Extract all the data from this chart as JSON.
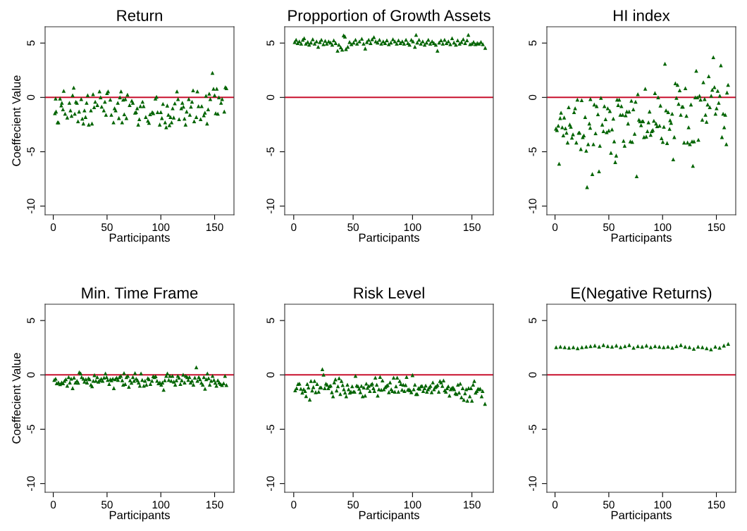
{
  "chart_data": [
    {
      "type": "scatter",
      "title": "Return",
      "xlabel": "Participants",
      "ylabel": "Coeffecient Value",
      "color": "#006400",
      "marker": "triangle",
      "xlim": [
        -7.6,
        168
      ],
      "ylim": [
        -10.8,
        6.5
      ],
      "xticks": [
        0,
        50,
        100,
        150
      ],
      "yticks": [
        5,
        0,
        -5,
        -10
      ],
      "ref_lines": [
        {
          "axis": "y",
          "value": 0,
          "color": "#c8102e"
        }
      ],
      "x": [
        1.5,
        2.6,
        2.2,
        4,
        4.8,
        6.3,
        7.4,
        8,
        9,
        9.7,
        11,
        13,
        15,
        16,
        17,
        18,
        19,
        20,
        21,
        22,
        23,
        24,
        26,
        27,
        28,
        29,
        30,
        31,
        32,
        33,
        35,
        36,
        37,
        38,
        39,
        41,
        43,
        44,
        45,
        47,
        48,
        49,
        50,
        51,
        53,
        54,
        56,
        57,
        58,
        60,
        61,
        62,
        63,
        64,
        65,
        66,
        67,
        68,
        69,
        71,
        73,
        74,
        76,
        77,
        78,
        79,
        80,
        81,
        83,
        84,
        86,
        88,
        89,
        90,
        92,
        93,
        95,
        96,
        97,
        99,
        100,
        101,
        102,
        104,
        105,
        106,
        107,
        108,
        109,
        110,
        111,
        112,
        113,
        115,
        116,
        117,
        119,
        120,
        121,
        122,
        123,
        124,
        126,
        127,
        128,
        129,
        130,
        131,
        133,
        134,
        135,
        137,
        138,
        140,
        141,
        142,
        143,
        144,
        145,
        146,
        148,
        149,
        150,
        151,
        152,
        153,
        154,
        156,
        157,
        159,
        160,
        161
      ],
      "values": [
        -1.45,
        -1.3,
        -0.1,
        -2.3,
        -2.3,
        -0.1,
        -0.74,
        -0.5,
        -1.1,
        0.6,
        -1.5,
        -1.85,
        -0.5,
        -1.2,
        -1.7,
        0.2,
        0.9,
        -1.5,
        -0.4,
        -0.5,
        -2.2,
        -1.3,
        -0.15,
        -1.95,
        -2.4,
        -1.2,
        -1.8,
        -0.5,
        0.2,
        -2.5,
        -1.2,
        -2.4,
        0.3,
        -0.9,
        -0.4,
        -0.7,
        0.55,
        0,
        -0.85,
        -1.2,
        -0.4,
        -1.6,
        0.4,
        0.55,
        -0.2,
        -1.6,
        -2.3,
        -1.0,
        -1.2,
        -0.5,
        -1.9,
        0,
        0.55,
        -2.3,
        -0.2,
        -1.55,
        -0.15,
        -1.9,
        0.25,
        -0.7,
        -0.3,
        -0.5,
        -1.4,
        -1.35,
        -1.0,
        -2.5,
        -2.0,
        -0.8,
        -0.4,
        -0.8,
        -1.8,
        -2.15,
        -2.35,
        -1.55,
        -1.35,
        -1.45,
        -0.1,
        0.05,
        -1.35,
        -2.5,
        -1.35,
        -1.9,
        -0.6,
        -2.3,
        -2.75,
        -0.75,
        -1.6,
        -2.55,
        -1.8,
        -2.3,
        -1.0,
        -1.85,
        -0.55,
        0.55,
        -0.15,
        -2.0,
        -1.0,
        -0.5,
        -0.85,
        -1.95,
        -2.5,
        -1.3,
        -0.15,
        -1.6,
        -0.85,
        -0.4,
        0.65,
        -2.2,
        -1.8,
        0.55,
        -0.8,
        -2.0,
        -0.8,
        -1.65,
        -1.4,
        0.15,
        -2.4,
        -1.1,
        0.35,
        -0.15,
        2.25,
        0.8,
        0.2,
        -1.45,
        0.8,
        -1.5,
        0,
        -0.5,
        -0.15,
        -1.3,
        0.95,
        0.85
      ]
    },
    {
      "type": "scatter",
      "title": "Propportion of Growth Assets",
      "xlabel": "Participants",
      "color": "#006400",
      "marker": "triangle",
      "xlim": [
        -7.6,
        168
      ],
      "ylim": [
        -10.8,
        6.5
      ],
      "xticks": [
        0,
        50,
        100,
        150
      ],
      "yticks": [
        5,
        0,
        -5,
        -10
      ],
      "ref_lines": [
        {
          "axis": "y",
          "value": 0,
          "color": "#c8102e"
        }
      ],
      "x": [
        0.8,
        2,
        3.3,
        4.7,
        6.3,
        7.6,
        8.8,
        10.2,
        11.8,
        13,
        14.5,
        16,
        17.6,
        19.2,
        20.6,
        22,
        23.3,
        25,
        26.5,
        27.8,
        29.4,
        31,
        32.4,
        33.7,
        35.3,
        36.9,
        38,
        39.6,
        40.8,
        42,
        43.1,
        44,
        45.5,
        47,
        48.6,
        50.4,
        52,
        53.3,
        55.3,
        57.3,
        58.8,
        60.2,
        61.6,
        63.1,
        64.7,
        66,
        67.5,
        69,
        70.6,
        72.2,
        73.7,
        75.3,
        76.9,
        78.4,
        80,
        81.8,
        83.5,
        85.1,
        86.7,
        88.2,
        89.8,
        91.4,
        92.9,
        94.5,
        96.1,
        97.5,
        99,
        100.4,
        102,
        103,
        104,
        105.5,
        107,
        108.6,
        110.2,
        111.8,
        113.3,
        114.9,
        116.5,
        118,
        119.6,
        121,
        122.4,
        124,
        125.5,
        127,
        128.6,
        130.2,
        131.8,
        133.3,
        134.9,
        136.5,
        138,
        139.6,
        141.2,
        142.7,
        144.3,
        145.9,
        147,
        148.4,
        150,
        151.4,
        153,
        154.5,
        156,
        157.6,
        159.2,
        161.2
      ],
      "values": [
        5.1,
        5.3,
        5.0,
        5.15,
        4.95,
        5.3,
        5.45,
        4.95,
        5.1,
        4.85,
        5.05,
        5.35,
        4.95,
        5.15,
        4.65,
        5.1,
        5.3,
        4.9,
        5.2,
        4.95,
        5.15,
        5.05,
        4.85,
        5.25,
        5.0,
        4.3,
        4.85,
        4.6,
        4.4,
        5.7,
        5.6,
        4.45,
        4.65,
        5.1,
        4.9,
        5.05,
        5.3,
        4.95,
        5.15,
        5.4,
        4.95,
        4.5,
        5.1,
        5.3,
        5.0,
        5.35,
        5.55,
        5.15,
        5.05,
        5.3,
        4.95,
        5.15,
        5.0,
        5.25,
        4.9,
        5.05,
        5.35,
        5.15,
        4.95,
        5.25,
        5.0,
        5.15,
        4.95,
        5.3,
        5.0,
        4.85,
        5.3,
        5.15,
        4.65,
        5.75,
        5.05,
        5.3,
        4.95,
        5.15,
        4.85,
        5.05,
        5.3,
        4.95,
        5.15,
        5.0,
        4.85,
        4.3,
        5.05,
        5.25,
        4.95,
        5.3,
        5.0,
        5.15,
        4.9,
        5.45,
        5.05,
        4.85,
        5.25,
        4.95,
        5.1,
        5.35,
        5.0,
        5.25,
        5.75,
        4.9,
        4.95,
        5.1,
        4.9,
        5.0,
        4.95,
        5.1,
        4.9,
        4.55
      ]
    },
    {
      "type": "scatter",
      "title": "HI index",
      "xlabel": "Participants",
      "color": "#006400",
      "marker": "triangle",
      "xlim": [
        -7.6,
        168
      ],
      "ylim": [
        -10.8,
        6.5
      ],
      "xticks": [
        0,
        50,
        100,
        150
      ],
      "yticks": [
        5,
        0,
        -5,
        -10
      ],
      "ref_lines": [
        {
          "axis": "y",
          "value": 0,
          "color": "#c8102e"
        }
      ],
      "x": [
        0.8,
        1.8,
        3,
        3.8,
        4.8,
        5.6,
        6.7,
        7.7,
        8.5,
        9.7,
        10.7,
        11.7,
        12.7,
        13.7,
        14.7,
        15.7,
        16.7,
        17.7,
        18.7,
        19.8,
        20.8,
        22,
        22.8,
        24,
        24.8,
        25.8,
        26.8,
        28,
        29,
        29.8,
        30.8,
        31.9,
        32.7,
        32.9,
        34.7,
        35.7,
        36.5,
        37.7,
        38.7,
        39.9,
        40.9,
        41.7,
        42.7,
        43.9,
        45,
        45.9,
        47,
        48,
        49,
        50,
        51,
        52,
        53,
        54.2,
        55,
        56,
        56.9,
        57.7,
        58.7,
        59.7,
        60.7,
        61.7,
        62.9,
        63.7,
        64.7,
        65.7,
        66.7,
        67.9,
        68.9,
        70,
        71,
        71.8,
        72.8,
        74,
        74.9,
        75.9,
        77,
        78,
        79,
        80,
        81,
        81.9,
        82.7,
        83.9,
        84.8,
        85.9,
        86.9,
        87.9,
        88.9,
        89.9,
        90.9,
        91.9,
        92.9,
        93.9,
        94.9,
        95.9,
        97.2,
        98,
        99,
        100.2,
        101.2,
        102.2,
        103.2,
        104.2,
        105.2,
        106.5,
        107,
        107.9,
        108.9,
        109.9,
        110.9,
        111.9,
        112.9,
        113.9,
        114.9,
        115.9,
        116.9,
        118.1,
        118.9,
        120,
        121.2,
        122.2,
        123.2,
        124.2,
        125.4,
        126.4,
        127.4,
        128.2,
        129.2,
        130.4,
        131.3,
        132.3,
        133.3,
        134.3,
        135.3,
        136.9,
        137.9,
        139.1,
        139.9,
        140.9,
        141.9,
        142.9,
        143.9,
        145.2,
        146.2,
        147.2,
        148.2,
        149.2,
        150.2,
        151.2,
        152.2,
        153.2,
        154.2,
        155.2,
        156.3,
        157.3,
        158.3,
        159.3,
        159.9,
        160.9
      ],
      "values": [
        -2.87,
        -3.0,
        -2.6,
        -6.1,
        -1.9,
        -1.4,
        -2.75,
        -3.5,
        -1.85,
        -2.85,
        -3.25,
        -4.15,
        -0.9,
        -2.5,
        -2.7,
        -3.7,
        -3.4,
        -1.35,
        -1.0,
        -4.15,
        -0.2,
        -3.25,
        -3.25,
        -4.75,
        -0.25,
        -3.65,
        -3.5,
        -1.8,
        -4.9,
        -8.25,
        -4.3,
        -2.4,
        -2.8,
        -0.15,
        -7.05,
        -4.3,
        -0.65,
        -3.3,
        -0.8,
        -1.55,
        -6.8,
        -4.45,
        -0.05,
        -2.5,
        -3.1,
        -0.8,
        -2.0,
        -3.2,
        -1.0,
        -3.05,
        -1.25,
        -5.1,
        -2.95,
        -1.95,
        -4.05,
        -5.95,
        -5.35,
        -0.2,
        -0.7,
        -0.2,
        -1.6,
        -0.8,
        -1.6,
        -4.0,
        -4.45,
        -1.65,
        -1.3,
        -2.4,
        -1.3,
        -4.05,
        -0.3,
        -4.1,
        -1.1,
        -3.35,
        -0.4,
        -7.25,
        0.3,
        -2.05,
        -2.2,
        -2.55,
        -2.2,
        -2.2,
        -3.65,
        0.8,
        -3.6,
        -3.1,
        -2.3,
        -1.3,
        -3.45,
        -3.1,
        -3.0,
        -2.15,
        0.4,
        -2.4,
        -2.65,
        0.0,
        -2.6,
        -0.75,
        -3.75,
        -4.1,
        -2.7,
        3.1,
        -1.2,
        -4.2,
        -1.35,
        -2.9,
        -2.1,
        -2.35,
        -1.5,
        -5.7,
        -3.65,
        1.3,
        -0.05,
        1.15,
        -0.6,
        0.65,
        -1.6,
        -0.85,
        -0.85,
        -4.15,
        0.85,
        -1.7,
        -4.15,
        -2.75,
        -4.3,
        -0.65,
        -4.05,
        -6.3,
        -4.05,
        0.0,
        2.45,
        0.0,
        -3.9,
        0.15,
        -0.2,
        -2.05,
        1.4,
        -0.15,
        -1.6,
        -2.25,
        -0.65,
        1.95,
        -0.9,
        0.15,
        0.7,
        3.7,
        0.95,
        -1.5,
        -1.0,
        0.6,
        -0.5,
        0.15,
        2.95,
        -3.65,
        -1.5,
        -2.75,
        -1.6,
        -4.3,
        0.45,
        1.15
      ]
    },
    {
      "type": "scatter",
      "title": "Min. Time Frame",
      "xlabel": "Participants",
      "ylabel": "Coeffecient Value",
      "color": "#006400",
      "marker": "triangle",
      "xlim": [
        -7.6,
        168
      ],
      "ylim": [
        -10.8,
        6.5
      ],
      "xticks": [
        0,
        50,
        100,
        150
      ],
      "yticks": [
        5,
        0,
        -5,
        -10
      ],
      "ref_lines": [
        {
          "axis": "y",
          "value": 0,
          "color": "#c8102e"
        }
      ],
      "x": [
        0.9,
        2.2,
        3.2,
        4.8,
        6.3,
        7.8,
        9.1,
        10.4,
        11.7,
        13,
        14.3,
        15.4,
        16.7,
        18,
        19.3,
        20.6,
        22.1,
        23.2,
        24.2,
        25.5,
        26.4,
        28,
        29,
        30.3,
        31.4,
        32.7,
        33.8,
        35,
        36.1,
        37.2,
        38.3,
        39.6,
        40.9,
        42,
        43.3,
        44.6,
        45.9,
        47.2,
        48.5,
        49.6,
        50.6,
        52,
        53,
        54.1,
        55.4,
        56.3,
        57.6,
        58.9,
        60.2,
        61.5,
        62.8,
        64.1,
        65,
        65.8,
        66.9,
        68,
        69.3,
        70.3,
        71.4,
        72.7,
        74,
        75.1,
        76,
        77.1,
        78.4,
        79.4,
        80.5,
        81.6,
        82.7,
        84.2,
        85.3,
        86.6,
        87.9,
        89,
        90.3,
        91.8,
        92.9,
        94,
        95.2,
        96.5,
        97.8,
        99.1,
        100.4,
        101.5,
        102.6,
        103.7,
        105,
        106.1,
        107.4,
        108.4,
        109.7,
        110.8,
        112.1,
        113.4,
        114.5,
        115.8,
        116.9,
        118.2,
        119.5,
        120.8,
        122.1,
        123.2,
        124.5,
        125.5,
        126.6,
        127.7,
        129,
        130.3,
        131.6,
        133,
        134,
        135.3,
        136.4,
        137.7,
        139,
        140,
        141.1,
        142.2,
        143.3,
        144.4,
        145.5,
        146.8,
        148.1,
        149.4,
        150.6,
        151.7,
        153,
        154.3,
        155.6,
        156.9,
        158.4,
        159.7,
        161
      ],
      "values": [
        -0.47,
        -0.35,
        -0.77,
        -0.7,
        -0.85,
        -0.7,
        -0.77,
        -0.55,
        -0.4,
        -1.0,
        -0.2,
        -0.7,
        -0.35,
        -1.22,
        -0.26,
        -0.7,
        -0.55,
        -0.73,
        0.24,
        0.13,
        -0.2,
        -0.35,
        -0.62,
        -0.4,
        -0.7,
        -0.3,
        -0.4,
        -0.9,
        -1.05,
        -0.55,
        -0.02,
        -0.55,
        -0.2,
        -0.62,
        -0.5,
        -0.35,
        -0.55,
        -0.26,
        0.13,
        -0.2,
        -0.47,
        -0.84,
        -0.4,
        -0.5,
        -0.35,
        -1.22,
        -0.4,
        -0.26,
        -0.47,
        -0.2,
        -0.09,
        -0.5,
        -0.9,
        0.17,
        -0.84,
        -0.2,
        -0.09,
        -1.1,
        -0.5,
        -0.73,
        -0.2,
        -0.55,
        0.17,
        -0.35,
        -0.5,
        -0.7,
        -1.0,
        0.13,
        -0.47,
        -1.0,
        -0.55,
        -0.9,
        -0.3,
        -0.4,
        -0.84,
        -0.55,
        -0.13,
        -0.2,
        -0.13,
        -0.55,
        -0.77,
        -0.7,
        -0.9,
        -0.7,
        -1.37,
        -0.5,
        -0.09,
        0.13,
        -0.47,
        -0.09,
        -0.55,
        -0.09,
        -0.62,
        -0.9,
        -0.5,
        -0.09,
        -0.26,
        -0.84,
        -0.5,
        0.02,
        -0.7,
        -0.09,
        -0.2,
        -0.47,
        -0.2,
        -0.7,
        -0.55,
        -0.9,
        -0.26,
        0.7,
        -0.55,
        -0.2,
        -0.4,
        -0.73,
        -0.9,
        -0.2,
        -1.27,
        -0.4,
        0.13,
        -0.3,
        -0.9,
        -0.55,
        -0.09,
        -0.47,
        -0.73,
        -1.0,
        -0.5,
        -0.7,
        -0.84,
        -0.94,
        -0.77,
        -0.09,
        -0.94
      ]
    },
    {
      "type": "scatter",
      "title": "Risk Level",
      "xlabel": "Participants",
      "color": "#006400",
      "marker": "triangle",
      "xlim": [
        -7.6,
        168
      ],
      "ylim": [
        -10.8,
        6.5
      ],
      "xticks": [
        0,
        50,
        100,
        150
      ],
      "yticks": [
        5,
        0,
        -5,
        -10
      ],
      "ref_lines": [
        {
          "axis": "y",
          "value": 0,
          "color": "#c8102e"
        }
      ],
      "x": [
        1.2,
        2.4,
        3.6,
        4.8,
        6,
        7.2,
        8.4,
        9.6,
        10.4,
        11.4,
        12.4,
        13.5,
        14.5,
        15.5,
        16.5,
        17.5,
        18.5,
        19.7,
        21,
        22.1,
        23.1,
        24.1,
        25.1,
        26.1,
        27.1,
        28.1,
        29.1,
        30.1,
        31.1,
        32.1,
        33.1,
        34.1,
        35.1,
        36.1,
        37.2,
        38.2,
        39.2,
        40.2,
        41.2,
        42.2,
        43.2,
        44.2,
        45.2,
        46.2,
        47.2,
        48.2,
        49.2,
        50.2,
        51.2,
        52,
        53,
        54.1,
        55.1,
        56.1,
        57,
        58,
        59,
        60.1,
        61.1,
        62.1,
        63.1,
        64.1,
        65.1,
        66.1,
        67.1,
        67.9,
        68.7,
        69.9,
        70.7,
        71.7,
        72.7,
        73.7,
        74.7,
        75.9,
        77.1,
        78.1,
        79.1,
        80.1,
        81.1,
        82.1,
        83.1,
        84.1,
        85.1,
        86.1,
        87.1,
        88.1,
        89.2,
        90.2,
        91.2,
        92.2,
        93.2,
        94.2,
        95,
        96,
        97,
        98,
        99,
        100,
        101,
        102,
        103,
        104,
        105,
        106,
        107,
        108,
        109,
        110.1,
        111.1,
        112.1,
        113.1,
        114.1,
        115.1,
        116.1,
        117.1,
        118.1,
        119.1,
        120.1,
        121.1,
        122.1,
        123.1,
        124.1,
        125.1,
        126.1,
        127.1,
        128.1,
        129.1,
        130.1,
        131.1,
        132.1,
        133.1,
        134.1,
        135.1,
        136.1,
        137.1,
        138.2,
        139.2,
        140.2,
        141.2,
        142.2,
        143.2,
        144.2,
        145.2,
        146.2,
        147.2,
        148.2,
        149.2,
        150,
        151,
        152,
        153.1,
        154.1,
        155.1,
        156.1,
        157,
        158.2,
        159,
        161
      ],
      "values": [
        -1.42,
        -1.22,
        -0.84,
        -0.8,
        -1.27,
        -1.63,
        -1.33,
        -1.48,
        -1.95,
        -0.84,
        -1.16,
        -2.27,
        -0.56,
        -1.44,
        -1.12,
        -0.56,
        -1.59,
        -0.84,
        -1.55,
        -1.16,
        -1.16,
        0.52,
        0.02,
        -1.22,
        -0.8,
        -0.9,
        -1.22,
        -1.05,
        -0.99,
        -1.59,
        -1.97,
        -0.69,
        -0.41,
        -1.44,
        -1.05,
        -0.3,
        -1.76,
        -0.56,
        -0.94,
        -1.33,
        -1.63,
        -1.97,
        -0.9,
        -1.33,
        -1.63,
        -1.55,
        -1.05,
        -1.55,
        -1.55,
        -0.09,
        -0.99,
        -1.05,
        -1.27,
        -1.59,
        -1.01,
        -1.97,
        -1.16,
        -1.91,
        -0.8,
        -1.2,
        -1.01,
        -1.48,
        -0.9,
        -0.8,
        -1.22,
        -1.48,
        -0.26,
        -0.9,
        -1.91,
        -1.33,
        -0.19,
        -1.37,
        -0.52,
        -1.33,
        -1.12,
        -1.01,
        -0.94,
        -1.59,
        -0.69,
        -1.33,
        -1.48,
        -0.26,
        -1.55,
        -1.05,
        -0.26,
        -1.55,
        -0.56,
        -0.84,
        -1.37,
        -0.9,
        -1.48,
        -0.94,
        -0.19,
        -1.37,
        -1.33,
        -1.42,
        -1.59,
        -0.02,
        -1.33,
        -0.9,
        -1.76,
        -1.76,
        -1.22,
        -1.27,
        -1.05,
        -1.01,
        -1.48,
        -1.22,
        -0.99,
        -1.55,
        -1.33,
        -1.16,
        -1.01,
        -1.59,
        -0.69,
        -1.33,
        -1.12,
        -1.05,
        -0.94,
        -1.55,
        -0.56,
        -0.69,
        -1.01,
        -0.52,
        -1.42,
        -1.55,
        -1.22,
        -1.05,
        -1.91,
        -1.33,
        -1.22,
        -1.16,
        -1.33,
        -1.7,
        -1.76,
        -0.9,
        -1.63,
        -0.8,
        -2.06,
        -1.22,
        -2.3,
        -1.7,
        -1.33,
        -2.38,
        -1.22,
        -1.97,
        -1.22,
        -2.38,
        -0.9,
        -0.56,
        -1.63,
        -1.48,
        -1.27,
        -1.33,
        -1.27,
        -1.97,
        -1.48,
        -2.66
      ]
    },
    {
      "type": "scatter",
      "title": "E(Negative Returns)",
      "xlabel": "Participants",
      "color": "#006400",
      "marker": "triangle",
      "xlim": [
        -7.6,
        168
      ],
      "ylim": [
        -10.8,
        6.5
      ],
      "xticks": [
        0,
        50,
        100,
        150
      ],
      "yticks": [
        5,
        0,
        -5,
        -10
      ],
      "ref_lines": [
        {
          "axis": "y",
          "value": 0,
          "color": "#c8102e"
        }
      ],
      "x": [
        1,
        5,
        9,
        13,
        17,
        21,
        25,
        29,
        33,
        37,
        41,
        45,
        49,
        53,
        57,
        61,
        65,
        69,
        73,
        77,
        81,
        85,
        89,
        93,
        97,
        101,
        105,
        109,
        113,
        117,
        121,
        125,
        129,
        133,
        137,
        141,
        145,
        149,
        153,
        157,
        161
      ],
      "values": [
        2.55,
        2.6,
        2.55,
        2.5,
        2.55,
        2.45,
        2.55,
        2.6,
        2.65,
        2.7,
        2.6,
        2.75,
        2.65,
        2.6,
        2.7,
        2.55,
        2.65,
        2.75,
        2.5,
        2.65,
        2.6,
        2.7,
        2.55,
        2.65,
        2.6,
        2.55,
        2.6,
        2.5,
        2.65,
        2.75,
        2.6,
        2.55,
        2.4,
        2.6,
        2.55,
        2.45,
        2.35,
        2.6,
        2.5,
        2.7,
        2.85
      ]
    }
  ]
}
